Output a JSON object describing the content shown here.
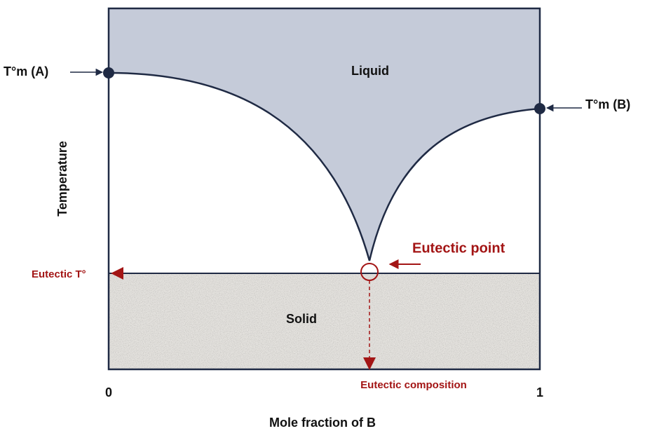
{
  "labels": {
    "tm_a": "T°m (A)",
    "tm_b": "T°m (B)",
    "liquid": "Liquid",
    "solid": "Solid",
    "y_axis": "Temperature",
    "eutectic_t": "Eutectic T°",
    "eutectic_point": "Eutectic point",
    "eutectic_composition": "Eutectic composition",
    "x_start": "0",
    "x_end": "1",
    "x_axis": "Mole fraction of B"
  }
}
